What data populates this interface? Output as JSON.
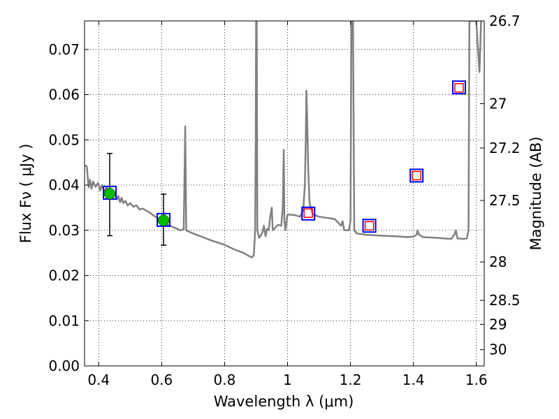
{
  "chart_data": {
    "type": "scatter",
    "title": "",
    "xlabel": "Wavelength  λ (μm)",
    "ylabel": "Flux  Fν  ( μJy )",
    "ylabel_right": "Magnitude (AB)",
    "xlim": [
      0.355,
      1.625
    ],
    "ylim": [
      0.0,
      0.0763
    ],
    "grid": true,
    "x_ticks": [
      0.4,
      0.6,
      0.8,
      1.0,
      1.2,
      1.4,
      1.6
    ],
    "x_tick_labels": [
      "0.4",
      "0.6",
      "0.8",
      "1",
      "1.2",
      "1.4",
      "1.6"
    ],
    "y_ticks": [
      0.0,
      0.01,
      0.02,
      0.03,
      0.04,
      0.05,
      0.06,
      0.07
    ],
    "y_tick_labels": [
      "0.00",
      "0.01",
      "0.02",
      "0.03",
      "0.04",
      "0.05",
      "0.06",
      "0.07"
    ],
    "right_ticks": [
      {
        "label": "26.7",
        "flux": 0.0763
      },
      {
        "label": "27",
        "flux": 0.058
      },
      {
        "label": "27.2",
        "flux": 0.0482
      },
      {
        "label": "27.5",
        "flux": 0.0366
      },
      {
        "label": "28",
        "flux": 0.023
      },
      {
        "label": "28.5",
        "flux": 0.0145
      },
      {
        "label": "29",
        "flux": 0.0092
      },
      {
        "label": "30",
        "flux": 0.0036
      }
    ],
    "series": [
      {
        "kind": "spectrum",
        "color": "#808080",
        "points": [
          [
            0.355,
            0.0444
          ],
          [
            0.362,
            0.0441
          ],
          [
            0.368,
            0.0395
          ],
          [
            0.372,
            0.0412
          ],
          [
            0.377,
            0.0392
          ],
          [
            0.382,
            0.0408
          ],
          [
            0.39,
            0.0396
          ],
          [
            0.398,
            0.0405
          ],
          [
            0.405,
            0.0388
          ],
          [
            0.41,
            0.04
          ],
          [
            0.418,
            0.0386
          ],
          [
            0.425,
            0.0395
          ],
          [
            0.432,
            0.038
          ],
          [
            0.438,
            0.0388
          ],
          [
            0.445,
            0.0372
          ],
          [
            0.452,
            0.038
          ],
          [
            0.458,
            0.0368
          ],
          [
            0.462,
            0.0376
          ],
          [
            0.468,
            0.0362
          ],
          [
            0.473,
            0.0372
          ],
          [
            0.478,
            0.036
          ],
          [
            0.485,
            0.0365
          ],
          [
            0.492,
            0.0355
          ],
          [
            0.5,
            0.036
          ],
          [
            0.51,
            0.0352
          ],
          [
            0.52,
            0.0355
          ],
          [
            0.53,
            0.0346
          ],
          [
            0.54,
            0.0348
          ],
          [
            0.55,
            0.0344
          ],
          [
            0.56,
            0.034
          ],
          [
            0.57,
            0.0335
          ],
          [
            0.58,
            0.033
          ],
          [
            0.59,
            0.0326
          ],
          [
            0.6,
            0.032
          ],
          [
            0.62,
            0.0312
          ],
          [
            0.64,
            0.0306
          ],
          [
            0.66,
            0.03
          ],
          [
            0.67,
            0.0302
          ],
          [
            0.672,
            0.039
          ],
          [
            0.675,
            0.053
          ],
          [
            0.678,
            0.03
          ],
          [
            0.7,
            0.0293
          ],
          [
            0.73,
            0.0285
          ],
          [
            0.76,
            0.0277
          ],
          [
            0.8,
            0.0268
          ],
          [
            0.83,
            0.0258
          ],
          [
            0.86,
            0.025
          ],
          [
            0.88,
            0.0242
          ],
          [
            0.887,
            0.024
          ],
          [
            0.893,
            0.0245
          ],
          [
            0.897,
            0.03
          ],
          [
            0.899,
            0.05
          ],
          [
            0.9,
            0.0763
          ],
          [
            0.902,
            0.0763
          ],
          [
            0.904,
            0.03
          ],
          [
            0.91,
            0.0283
          ],
          [
            0.92,
            0.0295
          ],
          [
            0.925,
            0.031
          ],
          [
            0.93,
            0.0287
          ],
          [
            0.935,
            0.0303
          ],
          [
            0.94,
            0.03
          ],
          [
            0.945,
            0.033
          ],
          [
            0.95,
            0.035
          ],
          [
            0.953,
            0.03
          ],
          [
            0.96,
            0.0305
          ],
          [
            0.97,
            0.0312
          ],
          [
            0.98,
            0.031
          ],
          [
            0.985,
            0.035
          ],
          [
            0.988,
            0.0478
          ],
          [
            0.99,
            0.032
          ],
          [
            0.993,
            0.03
          ],
          [
            1.0,
            0.0335
          ],
          [
            1.02,
            0.0334
          ],
          [
            1.04,
            0.033
          ],
          [
            1.05,
            0.0345
          ],
          [
            1.055,
            0.04
          ],
          [
            1.058,
            0.05
          ],
          [
            1.06,
            0.0609
          ],
          [
            1.062,
            0.056
          ],
          [
            1.066,
            0.043
          ],
          [
            1.07,
            0.036
          ],
          [
            1.08,
            0.0335
          ],
          [
            1.1,
            0.033
          ],
          [
            1.15,
            0.0325
          ],
          [
            1.17,
            0.031
          ],
          [
            1.175,
            0.032
          ],
          [
            1.18,
            0.03
          ],
          [
            1.195,
            0.03
          ],
          [
            1.2,
            0.032
          ],
          [
            1.203,
            0.0763
          ],
          [
            1.208,
            0.0763
          ],
          [
            1.212,
            0.03
          ],
          [
            1.22,
            0.0293
          ],
          [
            1.25,
            0.029
          ],
          [
            1.3,
            0.0288
          ],
          [
            1.34,
            0.0287
          ],
          [
            1.38,
            0.0285
          ],
          [
            1.4,
            0.0286
          ],
          [
            1.41,
            0.029
          ],
          [
            1.413,
            0.03
          ],
          [
            1.418,
            0.029
          ],
          [
            1.43,
            0.0285
          ],
          [
            1.48,
            0.0283
          ],
          [
            1.52,
            0.0281
          ],
          [
            1.53,
            0.029
          ],
          [
            1.535,
            0.03
          ],
          [
            1.54,
            0.0282
          ],
          [
            1.56,
            0.0281
          ],
          [
            1.57,
            0.0282
          ],
          [
            1.575,
            0.03
          ],
          [
            1.578,
            0.0763
          ],
          [
            1.6,
            0.0763
          ],
          [
            1.605,
            0.07
          ],
          [
            1.61,
            0.065
          ],
          [
            1.615,
            0.0763
          ]
        ]
      },
      {
        "kind": "model-photometry",
        "marker": "blue open square",
        "color": "#0000ff",
        "points": [
          [
            0.435,
            0.0383
          ],
          [
            0.606,
            0.0323
          ],
          [
            1.066,
            0.0337
          ],
          [
            1.26,
            0.031
          ],
          [
            1.41,
            0.0421
          ],
          [
            1.545,
            0.0616
          ]
        ]
      },
      {
        "kind": "photometry",
        "marker": "red open square",
        "color": "#ff0000",
        "points": [
          [
            1.066,
            0.0338
          ],
          [
            1.26,
            0.031
          ],
          [
            1.41,
            0.0421
          ],
          [
            1.545,
            0.0615
          ]
        ]
      },
      {
        "kind": "detections",
        "marker": "green filled circle with error bars",
        "color": "#00bb00",
        "points": [
          [
            0.435,
            0.0381
          ],
          [
            0.606,
            0.0322
          ]
        ],
        "error_low": [
          0.0093,
          0.0055
        ],
        "error_high": [
          0.0089,
          0.0058
        ]
      }
    ]
  }
}
